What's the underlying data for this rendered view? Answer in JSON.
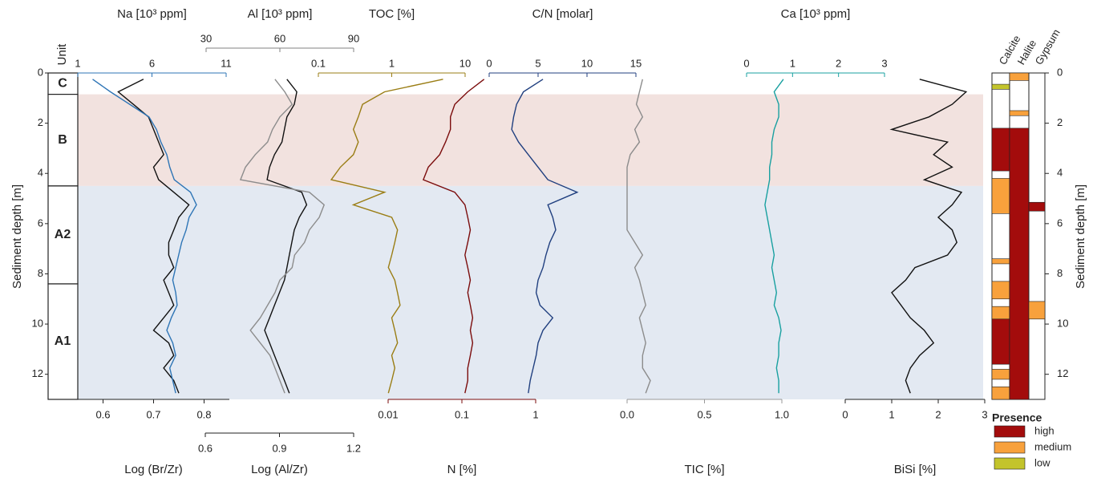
{
  "chart_data": {
    "type": "depth-profile",
    "unit_label": "Unit",
    "depth_label": "Sediment depth [m]",
    "depth_lim": [
      0,
      13
    ],
    "depth_ticks": [
      0,
      2,
      4,
      6,
      8,
      10,
      12
    ],
    "units": [
      {
        "label": "C",
        "top": 0,
        "bottom": 0.85,
        "color": "#ffffff"
      },
      {
        "label": "B",
        "top": 0.85,
        "bottom": 4.5,
        "color": "#f2e2df"
      },
      {
        "label": "A2",
        "top": 4.5,
        "bottom": 8.4,
        "color": "#e3e9f2"
      },
      {
        "label": "A1",
        "top": 8.4,
        "bottom": 13,
        "color": "#e3e9f2"
      }
    ],
    "depth": [
      0.25,
      0.75,
      1.25,
      1.75,
      2.25,
      2.75,
      3.25,
      3.75,
      4.25,
      4.75,
      5.25,
      5.75,
      6.25,
      6.75,
      7.25,
      7.75,
      8.25,
      8.75,
      9.25,
      9.75,
      10.25,
      10.75,
      11.25,
      11.75,
      12.25,
      12.75
    ],
    "panels": [
      {
        "top_axis": {
          "label": "Na [10³ ppm]",
          "lim": [
            1,
            11
          ],
          "ticks": [
            1,
            6,
            11
          ],
          "log": false,
          "color": "#2e75b6"
        },
        "bottom_axis": {
          "label": "Log (Br/Zr)",
          "lim": [
            0.55,
            0.85
          ],
          "ticks": [
            0.6,
            0.7,
            0.8
          ],
          "log": false,
          "color": "#222222"
        },
        "series": [
          {
            "axis": "bottom",
            "color": "#111111",
            "values": [
              0.68,
              0.63,
              0.66,
              0.69,
              0.7,
              0.71,
              0.72,
              0.7,
              0.71,
              0.74,
              0.77,
              0.75,
              0.74,
              0.73,
              0.73,
              0.74,
              0.72,
              0.73,
              0.74,
              0.72,
              0.7,
              0.73,
              0.74,
              0.72,
              0.74,
              0.75
            ]
          },
          {
            "axis": "top",
            "color": "#2e75b6",
            "values": [
              2.0,
              3.2,
              4.5,
              5.8,
              6.3,
              6.6,
              7.0,
              7.2,
              7.5,
              8.6,
              9.0,
              8.5,
              8.3,
              8.0,
              7.8,
              7.6,
              7.4,
              7.6,
              7.7,
              7.3,
              7.0,
              7.4,
              7.6,
              7.2,
              7.4,
              7.6
            ]
          }
        ]
      },
      {
        "top_axis": {
          "label": "Al [10³ ppm]",
          "lim": [
            30,
            90
          ],
          "ticks": [
            30,
            60,
            90
          ],
          "log": false,
          "color": "#808080"
        },
        "bottom_axis": {
          "label": "Log (Al/Zr)",
          "lim": [
            0.6,
            1.2
          ],
          "ticks": [
            0.6,
            0.9,
            1.2
          ],
          "log": false,
          "color": "#222222"
        },
        "series": [
          {
            "axis": "bottom",
            "color": "#111111",
            "values": [
              0.93,
              0.97,
              0.96,
              0.93,
              0.92,
              0.91,
              0.88,
              0.86,
              0.85,
              0.99,
              1.01,
              0.98,
              0.96,
              0.95,
              0.94,
              0.93,
              0.92,
              0.9,
              0.88,
              0.86,
              0.84,
              0.86,
              0.88,
              0.9,
              0.92,
              0.94
            ]
          },
          {
            "axis": "top",
            "color": "#8c8c8c",
            "values": [
              58,
              62,
              65,
              60,
              57,
              55,
              50,
              46,
              44,
              72,
              78,
              76,
              72,
              70,
              66,
              65,
              60,
              58,
              55,
              52,
              48,
              52,
              56,
              58,
              60,
              62
            ]
          }
        ]
      },
      {
        "top_axis": {
          "label": "TOC [%]",
          "lim": [
            0.1,
            10
          ],
          "ticks": [
            0.1,
            1,
            10
          ],
          "log": true,
          "color": "#9a7d14"
        },
        "bottom_axis": {
          "label": "N [%]",
          "lim": [
            0.01,
            1
          ],
          "ticks": [
            0.01,
            0.1,
            1
          ],
          "log": true,
          "color": "#7b0c0c"
        },
        "series": [
          {
            "axis": "top",
            "color": "#9a7d14",
            "values": [
              5,
              0.8,
              0.4,
              0.35,
              0.3,
              0.35,
              0.3,
              0.2,
              0.15,
              0.8,
              0.3,
              1.0,
              1.2,
              1.1,
              1.0,
              0.9,
              1.1,
              1.2,
              1.3,
              1.0,
              1.1,
              1.2,
              1.0,
              1.1,
              1.0,
              0.9
            ]
          },
          {
            "axis": "bottom",
            "color": "#7b0c0c",
            "values": [
              0.2,
              0.12,
              0.08,
              0.07,
              0.07,
              0.06,
              0.05,
              0.035,
              0.03,
              0.08,
              0.11,
              0.12,
              0.13,
              0.12,
              0.11,
              0.12,
              0.13,
              0.12,
              0.13,
              0.14,
              0.13,
              0.14,
              0.13,
              0.12,
              0.12,
              0.11
            ]
          }
        ]
      },
      {
        "top_axis": {
          "label": "C/N [molar]",
          "lim": [
            0,
            15
          ],
          "ticks": [
            0,
            5,
            10,
            15
          ],
          "log": false,
          "color": "#203f7f"
        },
        "bottom_axis": {
          "label": "TIC [%]",
          "lim": [
            0,
            1
          ],
          "ticks": [
            {
              "value": 0,
              "label": "0.0"
            },
            0.5,
            {
              "value": 1,
              "label": "1.0"
            }
          ],
          "log": false,
          "color": "#999999"
        },
        "series": [
          {
            "axis": "top",
            "color": "#203f7f",
            "values": [
              5.5,
              3.5,
              2.8,
              2.5,
              2.3,
              3,
              4,
              5,
              6,
              9,
              6,
              6.5,
              6.8,
              6.2,
              5.8,
              5.5,
              5,
              4.8,
              5.2,
              6.5,
              5.5,
              5,
              4.8,
              4.5,
              4.2,
              4
            ]
          },
          {
            "axis": "bottom",
            "color": "#8c8c8c",
            "values": [
              0.1,
              0.08,
              0.06,
              0.1,
              0.05,
              0.08,
              0.02,
              0,
              0,
              0,
              0,
              0,
              0,
              0.05,
              0.1,
              0.05,
              0.08,
              0.1,
              0.12,
              0.08,
              0.1,
              0.12,
              0.1,
              0.1,
              0.15,
              0.12
            ]
          }
        ]
      },
      {
        "top_axis": {
          "label": "Ca [10³ ppm]",
          "lim": [
            0,
            3
          ],
          "ticks": [
            0,
            1,
            2,
            3
          ],
          "log": false,
          "color": "#18a0a0"
        },
        "bottom_axis": {
          "label": "BiSi [%]",
          "lim": [
            0,
            3
          ],
          "ticks": [
            0,
            1,
            2,
            3
          ],
          "log": false,
          "color": "#222222"
        },
        "series": [
          {
            "axis": "top",
            "color": "#18a0a0",
            "values": [
              0.8,
              0.6,
              0.7,
              0.7,
              0.6,
              0.55,
              0.55,
              0.5,
              0.5,
              0.45,
              0.4,
              0.45,
              0.5,
              0.55,
              0.6,
              0.55,
              0.6,
              0.65,
              0.6,
              0.7,
              0.75,
              0.7,
              0.7,
              0.65,
              0.7,
              0.7
            ]
          },
          {
            "axis": "bottom",
            "color": "#111111",
            "values": [
              1.6,
              2.6,
              2.3,
              1.8,
              1.0,
              2.2,
              1.9,
              2.3,
              1.7,
              2.5,
              2.3,
              2.0,
              2.3,
              2.4,
              2.2,
              1.5,
              1.3,
              1.0,
              1.2,
              1.4,
              1.7,
              1.9,
              1.6,
              1.4,
              1.3,
              1.4
            ]
          }
        ]
      }
    ],
    "presence_title": "Presence",
    "presence_levels": [
      {
        "label": "high",
        "color": "#a30c0c"
      },
      {
        "label": "medium",
        "color": "#f8a13c"
      },
      {
        "label": "low",
        "color": "#c3c42c"
      }
    ],
    "minerals": [
      {
        "name": "Calcite",
        "intervals": [
          {
            "top": 0.45,
            "bottom": 0.65,
            "level": 2
          },
          {
            "top": 2.2,
            "bottom": 3.9,
            "level": 0
          },
          {
            "top": 4.2,
            "bottom": 5.6,
            "level": 1
          },
          {
            "top": 7.4,
            "bottom": 7.6,
            "level": 1
          },
          {
            "top": 8.3,
            "bottom": 9.0,
            "level": 1
          },
          {
            "top": 9.3,
            "bottom": 9.8,
            "level": 1
          },
          {
            "top": 9.8,
            "bottom": 11.6,
            "level": 0
          },
          {
            "top": 11.8,
            "bottom": 12.2,
            "level": 1
          },
          {
            "top": 12.5,
            "bottom": 13,
            "level": 1
          }
        ]
      },
      {
        "name": "Halite",
        "intervals": [
          {
            "top": 0,
            "bottom": 0.3,
            "level": 1
          },
          {
            "top": 1.5,
            "bottom": 1.7,
            "level": 1
          },
          {
            "top": 2.2,
            "bottom": 13,
            "level": 0
          }
        ]
      },
      {
        "name": "Gypsum",
        "intervals": [
          {
            "top": 5.15,
            "bottom": 5.5,
            "level": 0
          },
          {
            "top": 9.1,
            "bottom": 9.8,
            "level": 1
          }
        ]
      }
    ]
  }
}
